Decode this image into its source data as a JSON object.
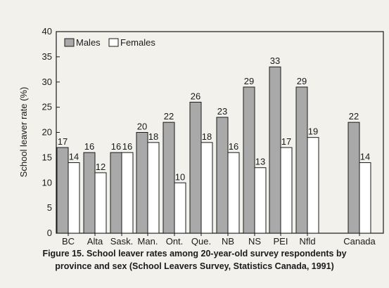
{
  "chart_data": {
    "type": "bar",
    "title": "",
    "caption_line1": "Figure 15. School leaver rates among 20-year-old survey respondents by",
    "caption_line2": "province and sex (School Leavers Survey, Statistics Canada, 1991)",
    "xlabel": "",
    "ylabel": "School leaver rate (%)",
    "ylim": [
      0,
      40
    ],
    "yticks": [
      "0",
      "5",
      "10",
      "15",
      "20",
      "25",
      "30",
      "35",
      "40"
    ],
    "categories": [
      "BC",
      "Alta",
      "Sask.",
      "Man.",
      "Ont.",
      "Que.",
      "NB",
      "NS",
      "PEI",
      "Nfld",
      "Canada"
    ],
    "series": [
      {
        "name": "Males",
        "values": [
          17,
          16,
          16,
          20,
          22,
          26,
          23,
          29,
          33,
          29,
          22
        ],
        "color": "#a9a9a9"
      },
      {
        "name": "Females",
        "values": [
          14,
          12,
          16,
          18,
          10,
          18,
          16,
          13,
          17,
          19,
          14
        ],
        "color": "#ffffff"
      }
    ],
    "legend_position": "top-left",
    "grid": false
  }
}
